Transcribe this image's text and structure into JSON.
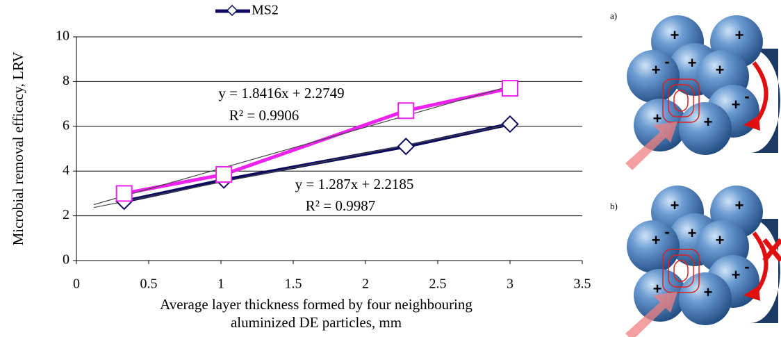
{
  "chart_data": {
    "type": "line",
    "legend": "MS2",
    "ylabel": "Microbial removal efficacy, LRV",
    "xlabel": [
      "Average layer thickness formed by four neighbouring",
      "aluminized DE particles, mm"
    ],
    "xlim": [
      0,
      3.5
    ],
    "xticks": [
      0,
      0.5,
      1,
      1.5,
      2,
      2.5,
      3,
      3.5
    ],
    "ylim": [
      0,
      10
    ],
    "yticks": [
      0,
      2,
      4,
      6,
      8,
      10
    ],
    "grid": true,
    "series": [
      {
        "name": "MS2",
        "color": "#0a0a5e",
        "marker": "diamond",
        "x": [
          0.33,
          1.02,
          2.28,
          3.0
        ],
        "values": [
          2.65,
          3.6,
          5.1,
          6.1
        ]
      },
      {
        "color": "#ee22ee",
        "marker": "square",
        "x": [
          0.33,
          1.02,
          2.28,
          3.0
        ],
        "values": [
          3.0,
          3.85,
          6.7,
          7.7
        ]
      }
    ],
    "trendlines": [
      {
        "color": "#444444",
        "x": [
          0.12,
          3.0
        ],
        "values": [
          2.5,
          7.8
        ]
      },
      {
        "color": "#444444",
        "x": [
          0.12,
          3.0
        ],
        "values": [
          2.37,
          6.08
        ]
      }
    ],
    "annotations": [
      "y = 1.8416x + 2.2749",
      "R² = 0.9906",
      "y = 1.287x + 2.2185",
      "R² = 0.9987"
    ]
  },
  "illustration": {
    "panels": [
      "a)",
      "b)"
    ],
    "plus": "+",
    "minus": "-"
  }
}
